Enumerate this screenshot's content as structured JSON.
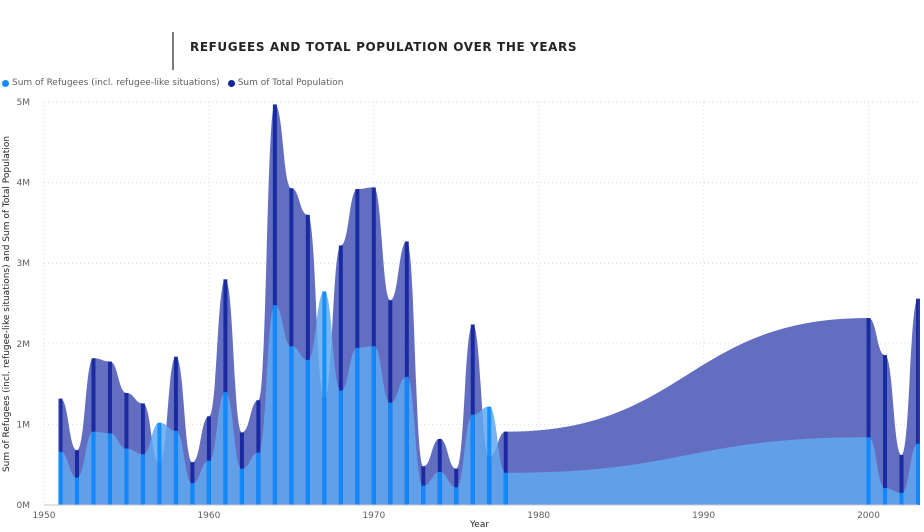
{
  "title": "REFUGEES AND TOTAL POPULATION OVER THE YEARS",
  "legend": [
    {
      "label": "Sum of Refugees (incl. refugee-like situations)",
      "color": "#118DFF"
    },
    {
      "label": "Sum of Total Population",
      "color": "#12239E"
    }
  ],
  "chart_data": {
    "type": "area",
    "title": "REFUGEES AND TOTAL POPULATION OVER THE YEARS",
    "xlabel": "Year",
    "ylabel": "Sum of Refugees (incl. refugee-like situations) and Sum of Total Population",
    "xlim": [
      1950,
      2003
    ],
    "ylim": [
      0,
      5000000
    ],
    "x_ticks": [
      1950,
      1960,
      1970,
      1980,
      1990,
      2000
    ],
    "y_ticks": [
      {
        "value": 0,
        "label": "0M"
      },
      {
        "value": 1000000,
        "label": "1M"
      },
      {
        "value": 2000000,
        "label": "2M"
      },
      {
        "value": 3000000,
        "label": "3M"
      },
      {
        "value": 4000000,
        "label": "4M"
      },
      {
        "value": 5000000,
        "label": "5M"
      }
    ],
    "grid": true,
    "legend_position": "top-left",
    "x": [
      1951,
      1952,
      1953,
      1954,
      1955,
      1956,
      1957,
      1958,
      1959,
      1960,
      1961,
      1962,
      1963,
      1964,
      1965,
      1966,
      1967,
      1968,
      1969,
      1970,
      1971,
      1972,
      1973,
      1974,
      1975,
      1976,
      1977,
      1978,
      2000,
      2001,
      2002,
      2003
    ],
    "series": [
      {
        "name": "Sum of Refugees (incl. refugee-like situations)",
        "color": "#118DFF",
        "values": [
          660000,
          340000,
          910000,
          890000,
          700000,
          630000,
          1020000,
          920000,
          270000,
          550000,
          1400000,
          450000,
          650000,
          2480000,
          1970000,
          1800000,
          2650000,
          1420000,
          1950000,
          1970000,
          1270000,
          1590000,
          240000,
          410000,
          220000,
          1120000,
          1220000,
          400000,
          840000,
          210000,
          150000,
          760000
        ]
      },
      {
        "name": "Sum of Total Population",
        "color": "#12239E",
        "values": [
          1320000,
          680000,
          1820000,
          1780000,
          1390000,
          1260000,
          520000,
          1840000,
          530000,
          1100000,
          2800000,
          900000,
          1300000,
          4970000,
          3930000,
          3600000,
          1330000,
          3220000,
          3920000,
          3940000,
          2540000,
          3270000,
          480000,
          820000,
          450000,
          2240000,
          600000,
          910000,
          2320000,
          1860000,
          620000,
          2560000
        ]
      }
    ]
  }
}
